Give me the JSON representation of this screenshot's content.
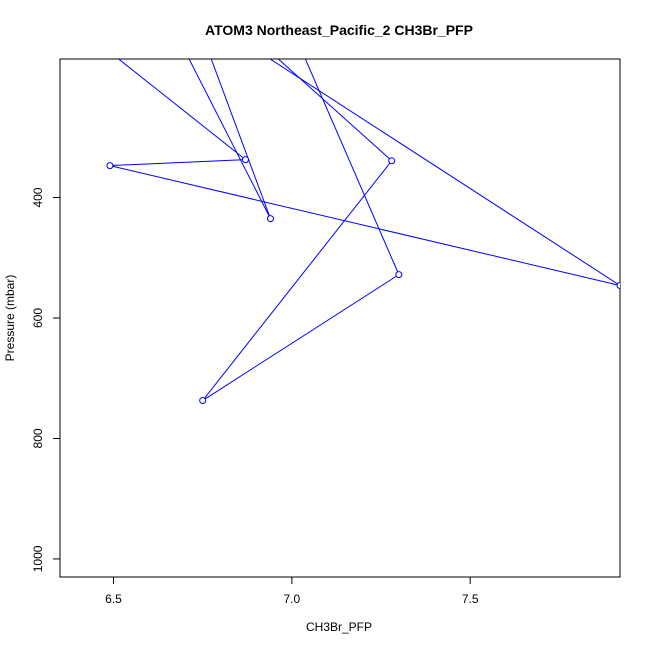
{
  "chart_data": {
    "type": "line",
    "title": "ATOM3 Northeast_Pacific_2 CH3Br_PFP",
    "xlabel": "CH3Br_PFP",
    "ylabel": "Pressure (mbar)",
    "xlim": [
      6.35,
      7.92
    ],
    "ylim": [
      1030,
      170
    ],
    "y_reversed": true,
    "x_ticks": [
      6.5,
      7.0,
      7.5
    ],
    "x_tick_labels": [
      "6.5",
      "7.0",
      "7.5"
    ],
    "y_ticks": [
      400,
      600,
      800,
      1000
    ],
    "y_tick_labels": [
      "400",
      "600",
      "800",
      "1000"
    ],
    "grid": false,
    "series_color": "#0000ff",
    "series": [
      {
        "x": [
          6.28,
          6.87,
          6.49,
          7.92,
          6.6,
          6.94,
          6.68,
          7.28,
          6.75,
          7.3,
          6.95,
          6.7,
          7.1
        ],
        "y": [
          60,
          337,
          347,
          546,
          40,
          435,
          20,
          339,
          737,
          528,
          50,
          120,
          10
        ],
        "markers": [
          false,
          true,
          true,
          true,
          false,
          true,
          false,
          true,
          true,
          true,
          false,
          false,
          false
        ]
      }
    ]
  }
}
